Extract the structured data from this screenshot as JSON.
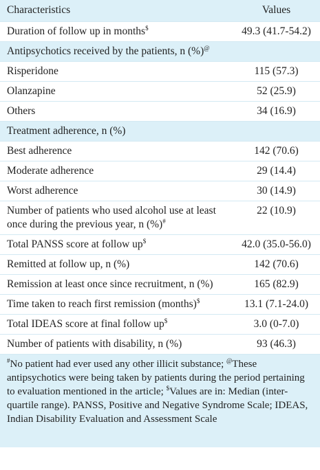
{
  "table": {
    "header": [
      "Characteristics",
      "Values"
    ],
    "rows": [
      {
        "label": "Duration of follow up in months",
        "sup": "$",
        "value": "49.3 (41.7-54.2)"
      },
      {
        "label": "Antipsychotics received by the patients, n (%)",
        "sup": "@",
        "shaded": true
      },
      {
        "label": "Risperidone",
        "value": "115 (57.3)"
      },
      {
        "label": "Olanzapine",
        "value": "52 (25.9)"
      },
      {
        "label": "Others",
        "value": "34 (16.9)"
      },
      {
        "label": "Treatment adherence, n (%)",
        "shaded": true
      },
      {
        "label": "Best adherence",
        "value": "142 (70.6)"
      },
      {
        "label": "Moderate adherence",
        "value": "29 (14.4)"
      },
      {
        "label": "Worst adherence",
        "value": "30 (14.9)"
      },
      {
        "label": "Number of patients who used alcohol use at least once during the previous year, n (%)",
        "sup": "#",
        "value": "22 (10.9)"
      },
      {
        "label": "Total PANSS score at follow up",
        "sup": "$",
        "value": "42.0 (35.0-56.0)"
      },
      {
        "label": "Remitted at follow up, n (%)",
        "value": "142 (70.6)"
      },
      {
        "label": "Remission at least once since recruitment, n (%)",
        "value": "165 (82.9)"
      },
      {
        "label": "Time taken to reach first remission (months)",
        "sup": "$",
        "value": "13.1 (7.1-24.0)"
      },
      {
        "label": "Total IDEAS score at final follow up",
        "sup": "$",
        "value": "3.0 (0-7.0)"
      },
      {
        "label": "Number of patients with disability, n (%)",
        "value": "93 (46.3)"
      }
    ],
    "footnote": [
      {
        "sup": "#",
        "text": "No patient had ever used any other illicit substance; "
      },
      {
        "sup": "@",
        "text": "These antipsychotics were being taken by patients during the period pertaining to evaluation mentioned in the article; "
      },
      {
        "sup": "$",
        "text": "Values are in: Median (inter-quartile range). PANSS, Positive and Negative Syndrome Scale; IDEAS, Indian Disability Evaluation and Assessment Scale"
      }
    ]
  }
}
